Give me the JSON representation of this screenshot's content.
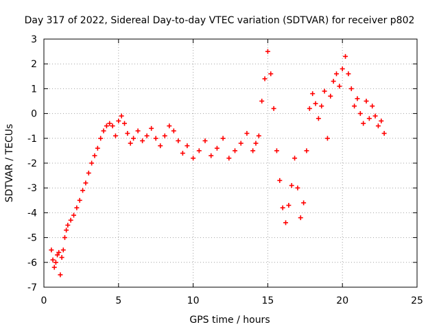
{
  "chart_data": {
    "type": "scatter",
    "title": "Day 317 of 2022, Sidereal Day-to-day VTEC variation (SDTVAR) for receiver p802",
    "xlabel": "GPS time / hours",
    "ylabel": "SDTVAR / TECUs",
    "xlim": [
      0,
      25
    ],
    "ylim": [
      -7,
      3
    ],
    "xticks": [
      0,
      5,
      10,
      15,
      20,
      25
    ],
    "yticks": [
      -7,
      -6,
      -5,
      -4,
      -3,
      -2,
      -1,
      0,
      1,
      2,
      3
    ],
    "grid": true,
    "marker": "+",
    "color": "#ff0000",
    "series": [
      {
        "name": "SDTVAR",
        "x": [
          0.5,
          0.6,
          0.7,
          0.8,
          0.9,
          1.0,
          1.1,
          1.2,
          1.3,
          1.4,
          1.5,
          1.6,
          1.8,
          2.0,
          2.2,
          2.4,
          2.6,
          2.8,
          3.0,
          3.2,
          3.4,
          3.6,
          3.8,
          4.0,
          4.2,
          4.4,
          4.6,
          4.8,
          5.0,
          5.2,
          5.4,
          5.6,
          5.8,
          6.0,
          6.3,
          6.6,
          6.9,
          7.2,
          7.5,
          7.8,
          8.1,
          8.4,
          8.7,
          9.0,
          9.3,
          9.6,
          10.0,
          10.4,
          10.8,
          11.2,
          11.6,
          12.0,
          12.4,
          12.8,
          13.2,
          13.6,
          14.0,
          14.2,
          14.4,
          14.6,
          14.8,
          15.0,
          15.2,
          15.4,
          15.6,
          15.8,
          16.0,
          16.2,
          16.4,
          16.6,
          16.8,
          17.0,
          17.2,
          17.4,
          17.6,
          17.8,
          18.0,
          18.2,
          18.4,
          18.6,
          18.8,
          19.0,
          19.2,
          19.4,
          19.6,
          19.8,
          20.0,
          20.2,
          20.4,
          20.6,
          20.8,
          21.0,
          21.2,
          21.4,
          21.6,
          21.8,
          22.0,
          22.2,
          22.4,
          22.6,
          22.8
        ],
        "y": [
          -5.5,
          -5.9,
          -6.2,
          -6.0,
          -5.7,
          -5.6,
          -6.5,
          -5.8,
          -5.5,
          -5.0,
          -4.7,
          -4.5,
          -4.3,
          -4.1,
          -3.8,
          -3.5,
          -3.1,
          -2.8,
          -2.4,
          -2.0,
          -1.7,
          -1.4,
          -1.0,
          -0.7,
          -0.5,
          -0.4,
          -0.5,
          -0.9,
          -0.3,
          -0.1,
          -0.4,
          -0.8,
          -1.2,
          -1.0,
          -0.7,
          -1.1,
          -0.9,
          -0.6,
          -1.0,
          -1.3,
          -0.9,
          -0.5,
          -0.7,
          -1.1,
          -1.6,
          -1.3,
          -1.8,
          -1.5,
          -1.1,
          -1.7,
          -1.4,
          -1.0,
          -1.8,
          -1.5,
          -1.2,
          -0.8,
          -1.5,
          -1.2,
          -0.9,
          0.5,
          1.4,
          2.5,
          1.6,
          0.2,
          -1.5,
          -2.7,
          -3.8,
          -4.4,
          -3.7,
          -2.9,
          -1.8,
          -3.0,
          -4.2,
          -3.6,
          -1.5,
          0.2,
          0.8,
          0.4,
          -0.2,
          0.3,
          0.9,
          -1.0,
          0.7,
          1.3,
          1.6,
          1.1,
          1.8,
          2.3,
          1.6,
          1.0,
          0.3,
          0.6,
          0.0,
          -0.4,
          0.5,
          -0.2,
          0.3,
          -0.1,
          -0.5,
          -0.3,
          -0.8
        ]
      }
    ]
  }
}
